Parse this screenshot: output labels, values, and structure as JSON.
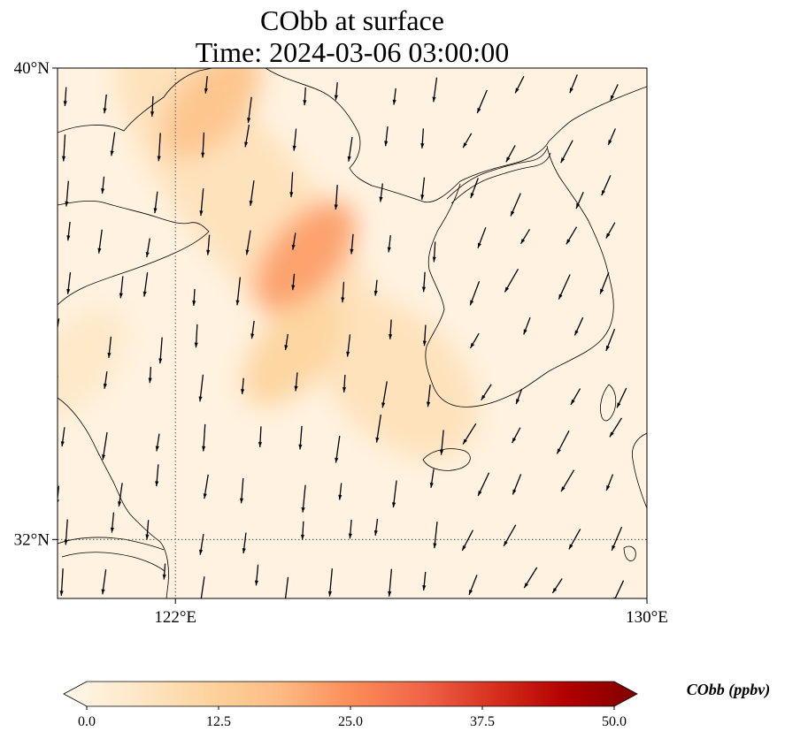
{
  "title": {
    "line1": "CObb at surface",
    "line2": "Time: 2024-03-06 03:00:00"
  },
  "map": {
    "extent": {
      "lon_min": 120,
      "lon_max": 130,
      "lat_min": 31,
      "lat_max": 40
    },
    "x_ticks": [
      {
        "lon": 122,
        "label": "122°E"
      },
      {
        "lon": 130,
        "label": "130°E"
      }
    ],
    "y_ticks": [
      {
        "lat": 40,
        "label": "40°N"
      },
      {
        "lat": 32,
        "label": "32°N"
      }
    ],
    "gridlines": true,
    "field": {
      "variable": "CObb",
      "units": "ppbv",
      "plume_axis": [
        [
          121.5,
          39.9
        ],
        [
          125.0,
          35.5
        ],
        [
          126.5,
          34.0
        ]
      ],
      "hotspots": [
        {
          "lon": 124.2,
          "lat": 36.8,
          "value": 22
        },
        {
          "lon": 122.6,
          "lat": 39.4,
          "value": 16
        },
        {
          "lon": 124.0,
          "lat": 35.2,
          "value": 12
        },
        {
          "lon": 120.3,
          "lat": 35.0,
          "value": 6
        }
      ],
      "background_value": 2
    }
  },
  "colorbar": {
    "title": "CObb (ppbv)",
    "min": 0,
    "max": 50,
    "ticks": [
      "0.0",
      "12.5",
      "25.0",
      "37.5",
      "50.0"
    ],
    "extend": "both",
    "colormap": "OrRd",
    "stops": [
      "#fff7ec",
      "#fee8c8",
      "#fdd49e",
      "#fdbb84",
      "#fc8d59",
      "#ef6548",
      "#d7301f",
      "#b30000",
      "#7f0000"
    ]
  },
  "colors": {
    "coastline": "#000000",
    "gridline": "#555555",
    "arrow": "#000000"
  }
}
